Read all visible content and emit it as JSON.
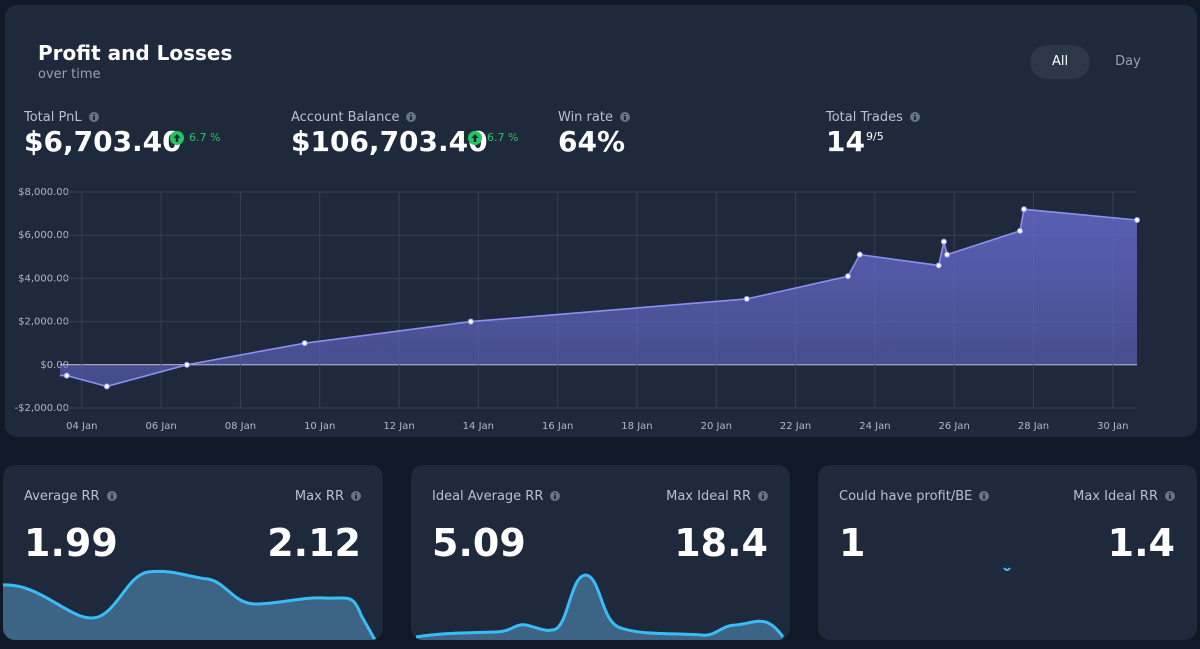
{
  "header": {
    "title": "Profit and Losses",
    "subtitle": "over time",
    "tabs": [
      "All",
      "Day"
    ]
  },
  "stats": [
    {
      "label": "Total PnL",
      "value": "$6,703.40",
      "change": "6.7 %"
    },
    {
      "label": "Account Balance",
      "value": "$106,703.40",
      "change": "6.7 %"
    },
    {
      "label": "Win rate",
      "value": "64%"
    },
    {
      "label": "Total Trades",
      "value": "14",
      "sub": "9/5"
    }
  ],
  "chart_data": {
    "type": "line",
    "x": [
      3.62,
      4.63,
      6.65,
      9.62,
      13.81,
      20.77,
      23.32,
      23.62,
      25.61,
      25.74,
      25.82,
      27.66,
      27.76,
      30.61
    ],
    "values": [
      -500,
      -1000,
      0,
      1000,
      2000,
      3050,
      4100,
      5100,
      4600,
      5700,
      5100,
      6200,
      7200,
      6703.4
    ],
    "color": "#8b8ff0",
    "xlim": [
      3.45,
      30.61
    ],
    "xticks": [
      {
        "value": 4,
        "label": "04 Jan"
      },
      {
        "value": 6,
        "label": "06 Jan"
      },
      {
        "value": 8,
        "label": "08 Jan"
      },
      {
        "value": 10,
        "label": "10 Jan"
      },
      {
        "value": 12,
        "label": "12 Jan"
      },
      {
        "value": 14,
        "label": "14 Jan"
      },
      {
        "value": 16,
        "label": "16 Jan"
      },
      {
        "value": 18,
        "label": "18 Jan"
      },
      {
        "value": 20,
        "label": "20 Jan"
      },
      {
        "value": 22,
        "label": "22 Jan"
      },
      {
        "value": 24,
        "label": "24 Jan"
      },
      {
        "value": 26,
        "label": "26 Jan"
      },
      {
        "value": 28,
        "label": "28 Jan"
      },
      {
        "value": 30,
        "label": "30 Jan"
      }
    ],
    "ylim": [
      -2000,
      8000
    ],
    "yticks": [
      {
        "value": -2000,
        "label": "-$2,000.00"
      },
      {
        "value": 0,
        "label": "$0.00"
      },
      {
        "value": 2000,
        "label": "$2,000.00"
      },
      {
        "value": 4000,
        "label": "$4,000.00"
      },
      {
        "value": 6000,
        "label": "$6,000.00"
      },
      {
        "value": 8000,
        "label": "$8,000.00"
      }
    ],
    "grid": true
  },
  "cards": [
    {
      "left_label": "Average RR",
      "left_value": "1.99",
      "right_label": "Max RR",
      "right_value": "2.12"
    },
    {
      "left_label": "Ideal Average RR",
      "left_value": "5.09",
      "right_label": "Max Ideal RR",
      "right_value": "18.4"
    },
    {
      "left_label": "Could have profit/BE",
      "left_value": "1",
      "right_label": "Max Ideal RR",
      "right_value": "1.4"
    }
  ]
}
